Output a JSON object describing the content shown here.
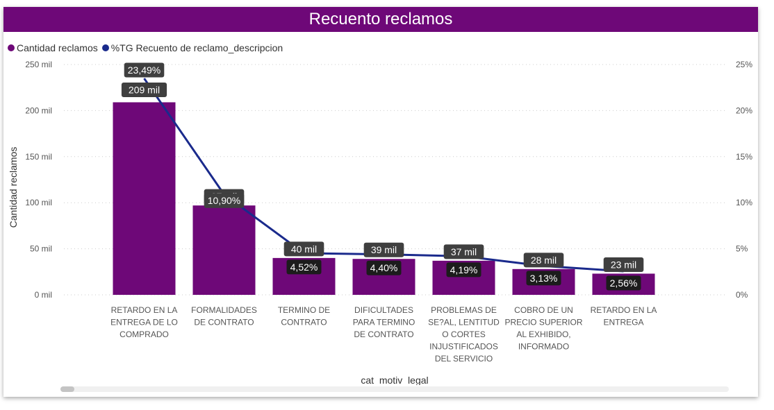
{
  "header": {
    "title": "Recuento reclamos"
  },
  "legend": [
    {
      "label": "Cantidad reclamos",
      "color": "#6e0878"
    },
    {
      "label": "%TG Recuento de reclamo_descripcion",
      "color": "#1a2a8c"
    }
  ],
  "colors": {
    "bar": "#6e0878",
    "line": "#1a2a8c",
    "label_bg": "#3f3f3f",
    "label_dark_bg": "#1c1c1c"
  },
  "chart_data": {
    "type": "bar",
    "title": "Recuento reclamos",
    "xlabel": "cat_motiv_legal",
    "ylabel": "Cantidad reclamos",
    "ylim": [
      0,
      250000
    ],
    "y2lim": [
      0,
      25
    ],
    "y_ticks": [
      "0 mil",
      "50 mil",
      "100 mil",
      "150 mil",
      "200 mil",
      "250 mil"
    ],
    "y2_ticks": [
      "0%",
      "5%",
      "10%",
      "15%",
      "20%",
      "25%"
    ],
    "categories": [
      [
        "RETARDO EN LA",
        "ENTREGA DE LO",
        "COMPRADO"
      ],
      [
        "FORMALIDADES",
        "DE CONTRATO"
      ],
      [
        "TERMINO DE",
        "CONTRATO"
      ],
      [
        "DIFICULTADES",
        "PARA TERMINO",
        "DE CONTRATO"
      ],
      [
        "PROBLEMAS DE",
        "SE?AL, LENTITUD",
        "O CORTES",
        "INJUSTIFICADOS",
        "DEL SERVICIO"
      ],
      [
        "COBRO DE UN",
        "PRECIO SUPERIOR",
        "AL EXHIBIDO,",
        "INFORMADO"
      ],
      [
        "RETARDO EN LA",
        "ENTREGA"
      ]
    ],
    "series": [
      {
        "name": "Cantidad reclamos",
        "type": "bar",
        "values": [
          209000,
          97000,
          40000,
          39000,
          37000,
          28000,
          23000
        ],
        "labels": [
          "209 mil",
          "97 mil",
          "40 mil",
          "39 mil",
          "37 mil",
          "28 mil",
          "23 mil"
        ]
      },
      {
        "name": "%TG Recuento de reclamo_descripcion",
        "type": "line",
        "values": [
          23.49,
          10.9,
          4.52,
          4.4,
          4.19,
          3.13,
          2.56
        ],
        "labels": [
          "23,49%",
          "10,90%",
          "4,52%",
          "4,40%",
          "4,19%",
          "3,13%",
          "2,56%"
        ]
      }
    ],
    "grid": true,
    "legend_position": "top-left"
  }
}
